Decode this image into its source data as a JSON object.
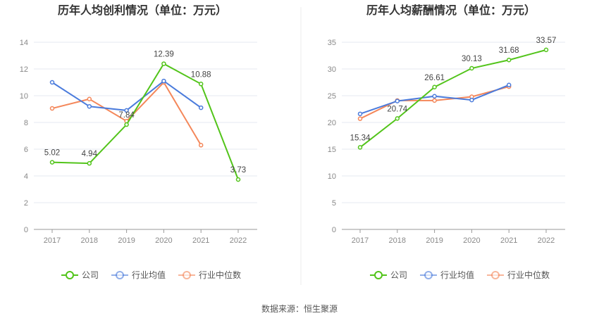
{
  "colors": {
    "company": "#52c41a",
    "industry_avg": "#4a7bdc",
    "industry_median": "#f4875a"
  },
  "source": "数据来源：恒生聚源",
  "chart_data": [
    {
      "type": "line",
      "title": "历年人均创利情况（单位：万元）",
      "categories": [
        "2017",
        "2018",
        "2019",
        "2020",
        "2021",
        "2022"
      ],
      "ylim": [
        0,
        14
      ],
      "yticks": [
        0,
        2,
        4,
        6,
        8,
        10,
        12,
        14
      ],
      "grid": true,
      "legend": "bottom",
      "series": [
        {
          "name": "公司",
          "key": "company",
          "values": [
            5.02,
            4.94,
            7.84,
            12.39,
            10.88,
            3.73
          ],
          "labels": true
        },
        {
          "name": "行业均值",
          "key": "industry_avg",
          "values": [
            11.0,
            9.2,
            8.9,
            11.1,
            9.1,
            null
          ]
        },
        {
          "name": "行业中位数",
          "key": "industry_median",
          "values": [
            9.05,
            9.75,
            8.1,
            11.0,
            6.3,
            null
          ]
        }
      ]
    },
    {
      "type": "line",
      "title": "历年人均薪酬情况（单位：万元）",
      "categories": [
        "2017",
        "2018",
        "2019",
        "2020",
        "2021",
        "2022"
      ],
      "ylim": [
        0,
        35
      ],
      "yticks": [
        0,
        5,
        10,
        15,
        20,
        25,
        30,
        35
      ],
      "grid": true,
      "legend": "bottom",
      "series": [
        {
          "name": "公司",
          "key": "company",
          "values": [
            15.34,
            20.74,
            26.61,
            30.13,
            31.68,
            33.57
          ],
          "labels": true
        },
        {
          "name": "行业均值",
          "key": "industry_avg",
          "values": [
            21.6,
            24.0,
            24.9,
            24.2,
            27.0,
            null
          ]
        },
        {
          "name": "行业中位数",
          "key": "industry_median",
          "values": [
            20.7,
            24.1,
            24.1,
            24.8,
            26.7,
            null
          ]
        }
      ]
    }
  ]
}
